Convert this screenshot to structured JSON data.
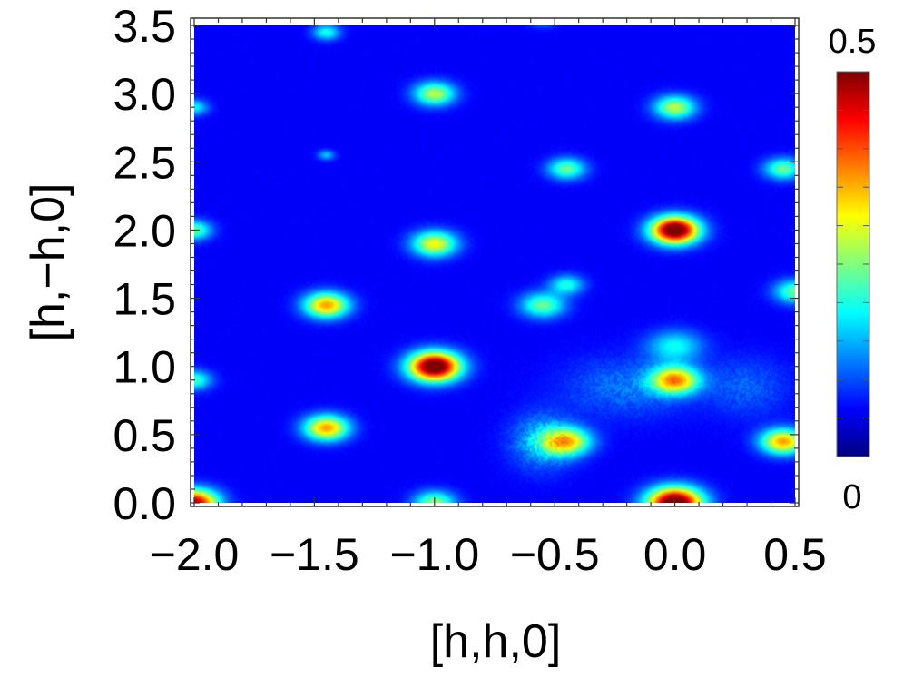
{
  "chart_data": {
    "type": "heatmap",
    "title": "",
    "xlabel": "[h,h,0]",
    "ylabel": "[h,−h,0]",
    "xlim": [
      -2.0,
      0.5
    ],
    "ylim": [
      0.0,
      3.5
    ],
    "x_ticks": [
      "−2.0",
      "−1.5",
      "−1.0",
      "−0.5",
      "0.0",
      "0.5"
    ],
    "x_tick_values": [
      -2.0,
      -1.5,
      -1.0,
      -0.5,
      0.0,
      0.5
    ],
    "y_ticks": [
      "0.0",
      "0.5",
      "1.0",
      "1.5",
      "2.0",
      "2.5",
      "3.0",
      "3.5"
    ],
    "y_tick_values": [
      0.0,
      0.5,
      1.0,
      1.5,
      2.0,
      2.5,
      3.0,
      3.5
    ],
    "colorbar": {
      "min": 0,
      "max": 0.5,
      "min_label": "0",
      "max_label": "0.5",
      "colormap": "jet"
    },
    "background_intensity": 0.06,
    "peaks": [
      {
        "h": -2.0,
        "k": 0.0,
        "intensity": 0.42,
        "width": 0.07
      },
      {
        "h": -1.0,
        "k": 0.0,
        "intensity": 0.2,
        "width": 0.06
      },
      {
        "h": 0.0,
        "k": 0.0,
        "intensity": 0.5,
        "width": 0.08
      },
      {
        "h": -1.45,
        "k": 0.55,
        "intensity": 0.3,
        "width": 0.065
      },
      {
        "h": -0.45,
        "k": 0.45,
        "intensity": 0.26,
        "width": 0.07
      },
      {
        "h": 0.45,
        "k": 0.45,
        "intensity": 0.3,
        "width": 0.065
      },
      {
        "h": -1.0,
        "k": 1.0,
        "intensity": 0.5,
        "width": 0.075
      },
      {
        "h": -2.0,
        "k": 0.9,
        "intensity": 0.16,
        "width": 0.05
      },
      {
        "h": 0.0,
        "k": 0.9,
        "intensity": 0.3,
        "width": 0.07
      },
      {
        "h": 0.0,
        "k": 1.15,
        "intensity": 0.13,
        "width": 0.08
      },
      {
        "h": -1.45,
        "k": 1.45,
        "intensity": 0.3,
        "width": 0.065
      },
      {
        "h": -0.55,
        "k": 1.45,
        "intensity": 0.18,
        "width": 0.065
      },
      {
        "h": -0.45,
        "k": 1.6,
        "intensity": 0.14,
        "width": 0.05
      },
      {
        "h": 0.5,
        "k": 1.55,
        "intensity": 0.18,
        "width": 0.06
      },
      {
        "h": -2.0,
        "k": 2.0,
        "intensity": 0.18,
        "width": 0.05
      },
      {
        "h": -1.0,
        "k": 1.9,
        "intensity": 0.25,
        "width": 0.065
      },
      {
        "h": 0.0,
        "k": 2.0,
        "intensity": 0.5,
        "width": 0.07
      },
      {
        "h": -1.45,
        "k": 2.55,
        "intensity": 0.1,
        "width": 0.025
      },
      {
        "h": -0.45,
        "k": 2.45,
        "intensity": 0.18,
        "width": 0.055
      },
      {
        "h": 0.45,
        "k": 2.45,
        "intensity": 0.18,
        "width": 0.055
      },
      {
        "h": -2.0,
        "k": 2.9,
        "intensity": 0.13,
        "width": 0.04
      },
      {
        "h": -1.0,
        "k": 3.0,
        "intensity": 0.22,
        "width": 0.06
      },
      {
        "h": 0.0,
        "k": 2.9,
        "intensity": 0.22,
        "width": 0.06
      },
      {
        "h": -1.45,
        "k": 3.45,
        "intensity": 0.14,
        "width": 0.04
      },
      {
        "h": -0.55,
        "k": 3.55,
        "intensity": 0.1,
        "width": 0.04
      }
    ],
    "diffuse_regions": [
      {
        "h": -0.55,
        "k": 0.45,
        "intensity": 0.1,
        "width_h": 0.09,
        "width_k": 0.14
      },
      {
        "h": -0.2,
        "k": 0.85,
        "intensity": 0.06,
        "width_h": 0.18,
        "width_k": 0.15
      },
      {
        "h": 0.3,
        "k": 0.85,
        "intensity": 0.05,
        "width_h": 0.12,
        "width_k": 0.15
      }
    ]
  }
}
